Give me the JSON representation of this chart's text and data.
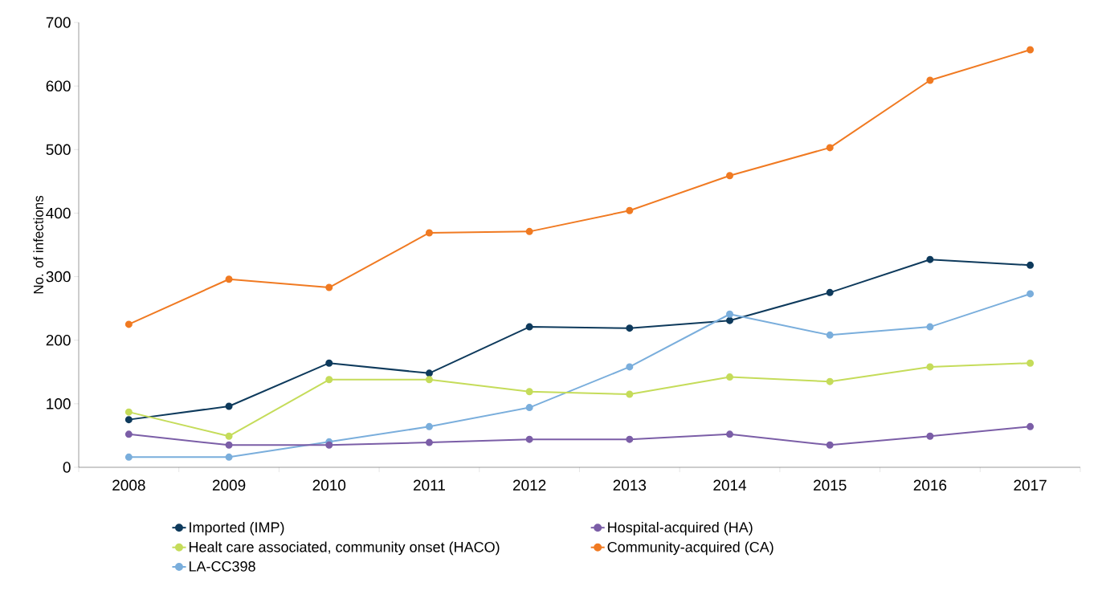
{
  "chart_data": {
    "type": "line",
    "ylabel": "No. of infections",
    "categories": [
      "2008",
      "2009",
      "2010",
      "2011",
      "2012",
      "2013",
      "2014",
      "2015",
      "2016",
      "2017"
    ],
    "ylim": [
      0,
      700
    ],
    "yticks": [
      0,
      100,
      200,
      300,
      400,
      500,
      600,
      700
    ],
    "marker": "circle",
    "line_style": "solid",
    "legend": "bottom",
    "grid": false,
    "series": [
      {
        "name": "Imported (IMP)",
        "color": "#0e3a5c",
        "values": [
          75,
          96,
          164,
          148,
          221,
          219,
          231,
          275,
          327,
          318
        ]
      },
      {
        "name": "Hospital-acquired (HA)",
        "color": "#7b5ea7",
        "values": [
          52,
          35,
          35,
          39,
          44,
          44,
          52,
          35,
          49,
          64
        ]
      },
      {
        "name": "Healt care associated, community onset (HACO)",
        "color": "#c5dc5a",
        "values": [
          87,
          49,
          138,
          138,
          119,
          115,
          142,
          135,
          158,
          164
        ]
      },
      {
        "name": "Community-acquired (CA)",
        "color": "#f07a22",
        "values": [
          225,
          296,
          283,
          369,
          371,
          404,
          459,
          503,
          609,
          657
        ]
      },
      {
        "name": "LA-CC398",
        "color": "#7aaedc",
        "values": [
          16,
          16,
          40,
          64,
          94,
          158,
          241,
          208,
          221,
          273
        ]
      }
    ]
  }
}
